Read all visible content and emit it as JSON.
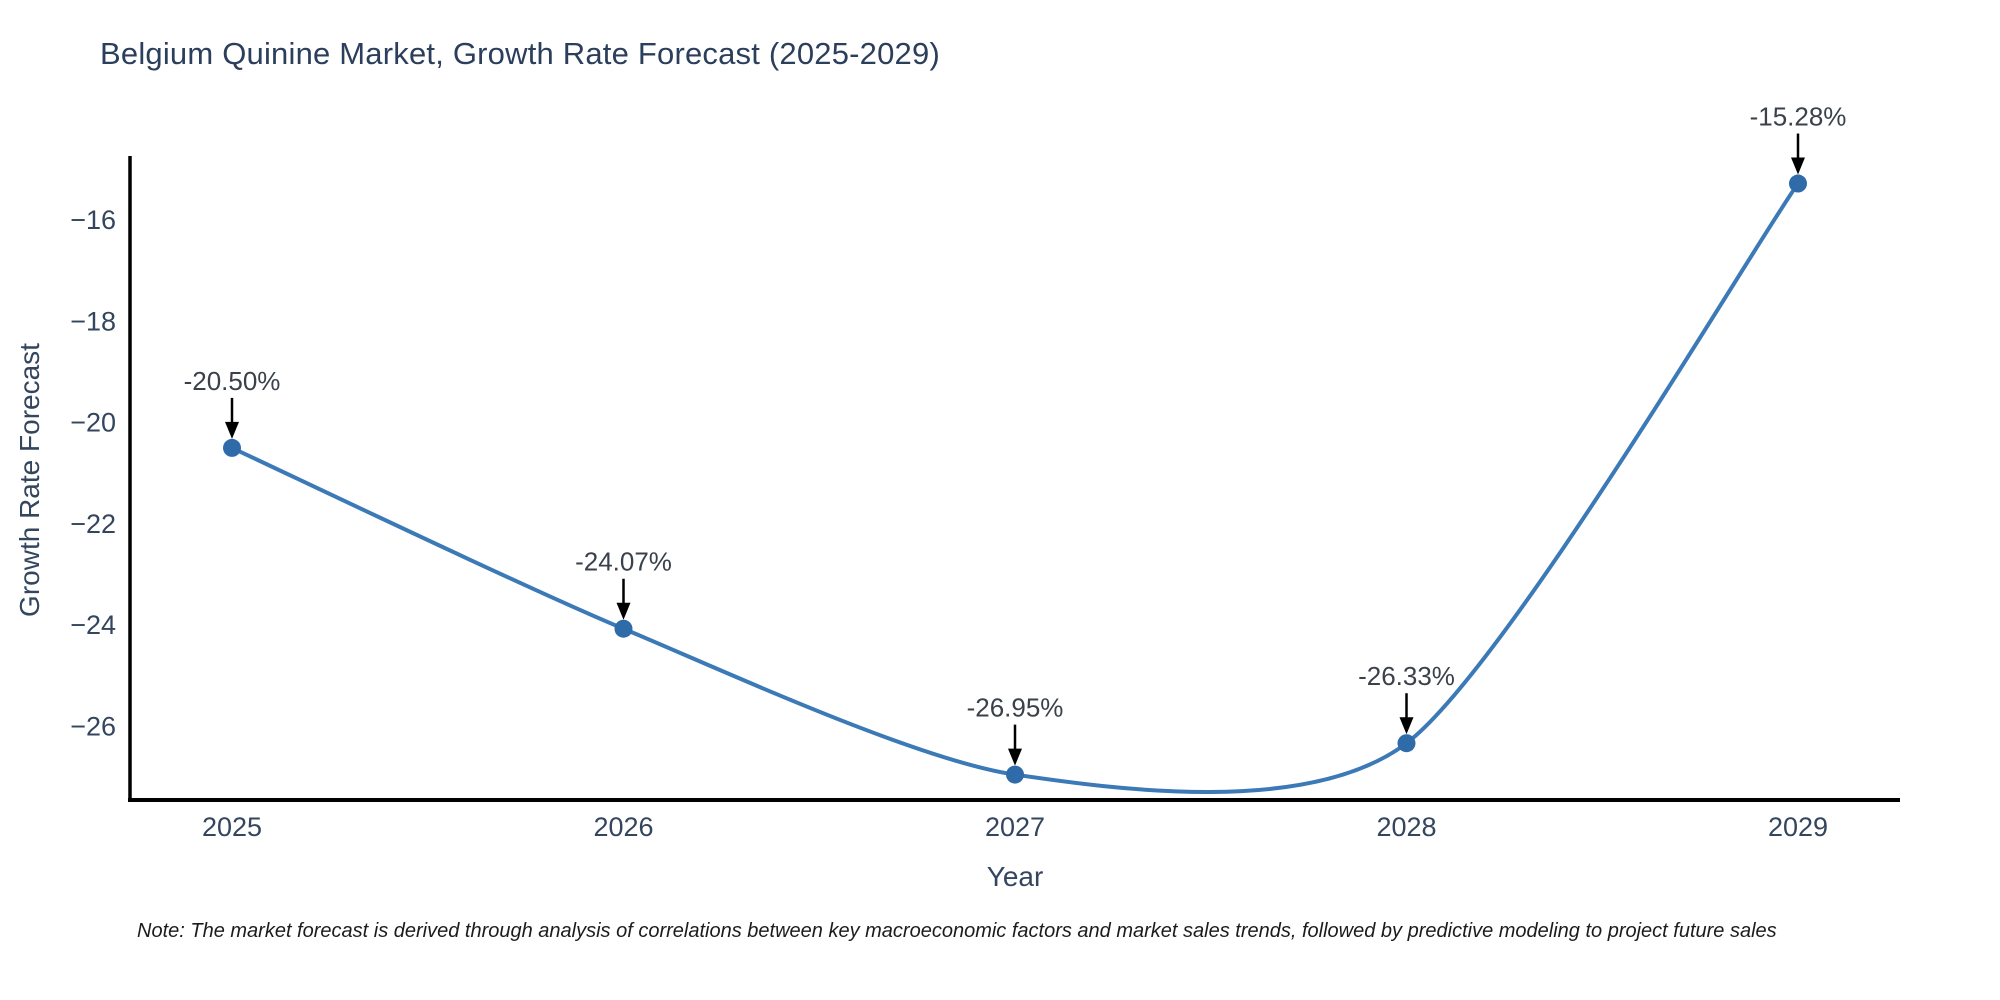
{
  "chart_data": {
    "type": "line",
    "title": "Belgium Quinine Market, Growth Rate Forecast (2025-2029)",
    "xlabel": "Year",
    "ylabel": "Growth Rate Forecast",
    "x": [
      2025,
      2026,
      2027,
      2028,
      2029
    ],
    "values": [
      -20.5,
      -24.07,
      -26.95,
      -26.33,
      -15.28
    ],
    "point_labels": [
      "-20.50%",
      "-24.07%",
      "-26.95%",
      "-26.33%",
      "-15.28%"
    ],
    "x_tick_labels": [
      "2025",
      "2026",
      "2027",
      "2028",
      "2029"
    ],
    "y_ticks": [
      -16,
      -18,
      -20,
      -22,
      -24,
      -26
    ],
    "y_tick_labels": [
      "−16",
      "−18",
      "−20",
      "−22",
      "−24",
      "−26"
    ],
    "xlim": [
      2024.73,
      2029.26
    ],
    "ylim": [
      -27.46,
      -14.81
    ],
    "grid": false,
    "legend": null,
    "line_color": "#3b79b7",
    "marker_color": "#2f6ba8",
    "axis_color": "#000000",
    "annotation_arrow_color": "#000000",
    "smoothing": "spline"
  },
  "note": "Note: The market forecast is derived through analysis of correlations between key macroeconomic factors and market sales trends, followed by predictive modeling to project future sales"
}
